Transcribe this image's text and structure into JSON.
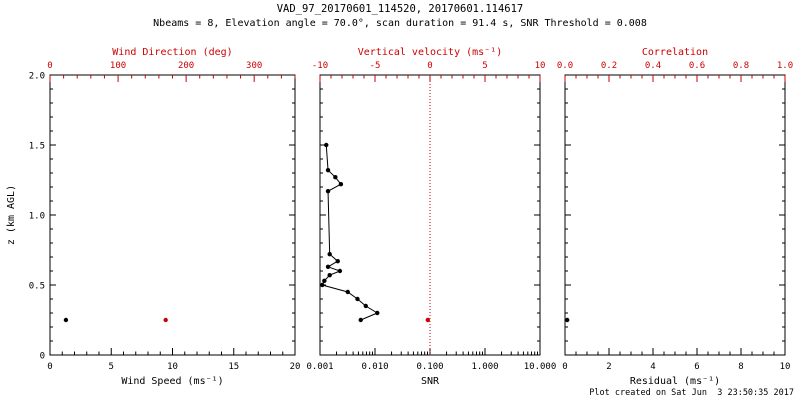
{
  "header": {
    "title": "VAD_97_20170601_114520, 20170601.114617",
    "subtitle": "Nbeams = 8, Elevation angle = 70.0°, scan duration = 91.4 s, SNR Threshold = 0.008"
  },
  "footer": {
    "text": "Plot created on Sat Jun  3 23:50:35 2017"
  },
  "colors": {
    "primary": "#000000",
    "secondary": "#cc0000",
    "background": "#ffffff"
  },
  "y_axis": {
    "label": "z (km AGL)",
    "lim": [
      0,
      2.0
    ],
    "ticks": [
      0,
      0.5,
      1.0,
      1.5,
      2.0
    ],
    "tick_labels": [
      "0",
      "0.5",
      "1.0",
      "1.5",
      "2.0"
    ],
    "minor_step": 0.1
  },
  "chart_data": [
    {
      "type": "scatter",
      "panel": "wind-speed",
      "xlabel": "Wind Speed (ms⁻¹)",
      "xscale": "linear",
      "xlim": [
        0,
        20
      ],
      "xticks": [
        0,
        5,
        10,
        15,
        20
      ],
      "xtick_labels": [
        "0",
        "5",
        "10",
        "15",
        "20"
      ],
      "minor_step": 1,
      "top_axis": {
        "label": "Wind Direction (deg)",
        "xlim": [
          0,
          360
        ],
        "ticks": [
          0,
          100,
          200,
          300
        ],
        "tick_labels": [
          "0",
          "100",
          "200",
          "300"
        ],
        "minor_step": 20
      },
      "series": [
        {
          "name": "wind-speed-profile",
          "color": "#000000",
          "axis": "bottom",
          "connect": false,
          "points": [
            {
              "x": 1.3,
              "z": 0.25
            }
          ]
        },
        {
          "name": "wind-direction-profile",
          "color": "#cc0000",
          "axis": "top",
          "connect": false,
          "points": [
            {
              "x": 170,
              "z": 0.25
            }
          ]
        }
      ]
    },
    {
      "type": "scatter",
      "panel": "snr",
      "xlabel": "SNR",
      "xscale": "log",
      "xlim": [
        0.001,
        10.0
      ],
      "xticks": [
        0.001,
        0.01,
        0.1,
        1.0,
        10.0
      ],
      "xtick_labels": [
        "0.001",
        "0.010",
        "0.100",
        "1.000",
        "10.000"
      ],
      "top_axis": {
        "label": "Vertical velocity (ms⁻¹)",
        "xlim": [
          -10,
          10
        ],
        "ticks": [
          -10,
          -5,
          0,
          5,
          10
        ],
        "tick_labels": [
          "-10",
          "-5",
          "0",
          "5",
          "10"
        ],
        "minor_step": 1
      },
      "reference_line": {
        "axis": "top",
        "x": 0,
        "color": "#cc0000",
        "style": "dotted"
      },
      "series": [
        {
          "name": "snr-profile",
          "color": "#000000",
          "axis": "bottom",
          "connect": true,
          "points": [
            {
              "x": 0.0013,
              "z": 1.5
            },
            {
              "x": 0.0014,
              "z": 1.32
            },
            {
              "x": 0.0019,
              "z": 1.27
            },
            {
              "x": 0.0024,
              "z": 1.22
            },
            {
              "x": 0.0014,
              "z": 1.17
            },
            {
              "x": 0.0015,
              "z": 0.72
            },
            {
              "x": 0.0021,
              "z": 0.67
            },
            {
              "x": 0.0014,
              "z": 0.63
            },
            {
              "x": 0.0023,
              "z": 0.6
            },
            {
              "x": 0.0015,
              "z": 0.57
            },
            {
              "x": 0.0012,
              "z": 0.53
            },
            {
              "x": 0.0011,
              "z": 0.5
            },
            {
              "x": 0.0032,
              "z": 0.45
            },
            {
              "x": 0.0048,
              "z": 0.4
            },
            {
              "x": 0.0068,
              "z": 0.35
            },
            {
              "x": 0.011,
              "z": 0.3
            },
            {
              "x": 0.0055,
              "z": 0.25
            }
          ]
        },
        {
          "name": "vertical-velocity-profile",
          "color": "#cc0000",
          "axis": "top",
          "connect": false,
          "points": [
            {
              "x": -0.2,
              "z": 0.25
            }
          ]
        }
      ]
    },
    {
      "type": "scatter",
      "panel": "residual",
      "xlabel": "Residual (ms⁻¹)",
      "xscale": "linear",
      "xlim": [
        0,
        10
      ],
      "xticks": [
        0,
        2,
        4,
        6,
        8,
        10
      ],
      "xtick_labels": [
        "0",
        "2",
        "4",
        "6",
        "8",
        "10"
      ],
      "minor_step": 0.5,
      "top_axis": {
        "label": "Correlation",
        "xlim": [
          0,
          1
        ],
        "ticks": [
          0,
          0.2,
          0.4,
          0.6,
          0.8,
          1.0
        ],
        "tick_labels": [
          "0.0",
          "0.2",
          "0.4",
          "0.6",
          "0.8",
          "1.0"
        ],
        "minor_step": 0.05
      },
      "series": [
        {
          "name": "residual-profile",
          "color": "#000000",
          "axis": "bottom",
          "connect": false,
          "points": [
            {
              "x": 0.1,
              "z": 0.25
            }
          ]
        }
      ]
    }
  ]
}
